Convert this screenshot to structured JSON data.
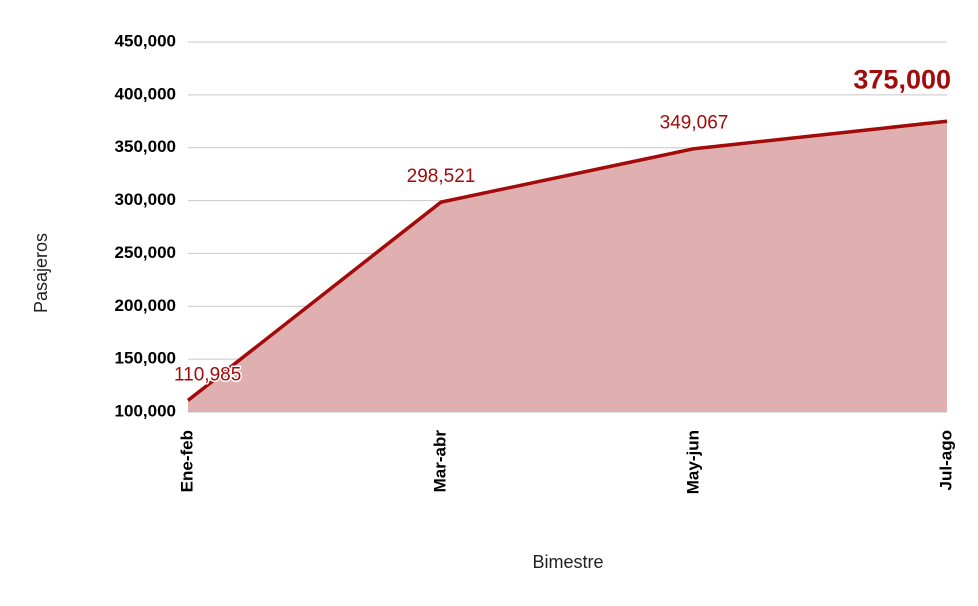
{
  "chart_data": {
    "type": "area",
    "x_label": "Bimestre",
    "y_label": "Pasajeros",
    "categories": [
      "Ene-feb",
      "Mar-abr",
      "May-jun",
      "Jul-ago"
    ],
    "series": [
      {
        "color": "#a30a0a",
        "fill": "#e0b0b0",
        "values": [
          110985,
          298521,
          349067,
          375000
        ],
        "value_labels": [
          "110,985",
          "298,521",
          "349,067",
          "375,000"
        ]
      }
    ],
    "ylim": [
      100000,
      450000
    ],
    "yticks": [
      {
        "value": 100000,
        "label": "100,000"
      },
      {
        "value": 150000,
        "label": "150,000"
      },
      {
        "value": 200000,
        "label": "200,000"
      },
      {
        "value": 250000,
        "label": "250,000"
      },
      {
        "value": 300000,
        "label": "300,000"
      },
      {
        "value": 350000,
        "label": "350,000"
      },
      {
        "value": 400000,
        "label": "400,000"
      },
      {
        "value": 450000,
        "label": "450,000"
      }
    ],
    "grid": true
  }
}
